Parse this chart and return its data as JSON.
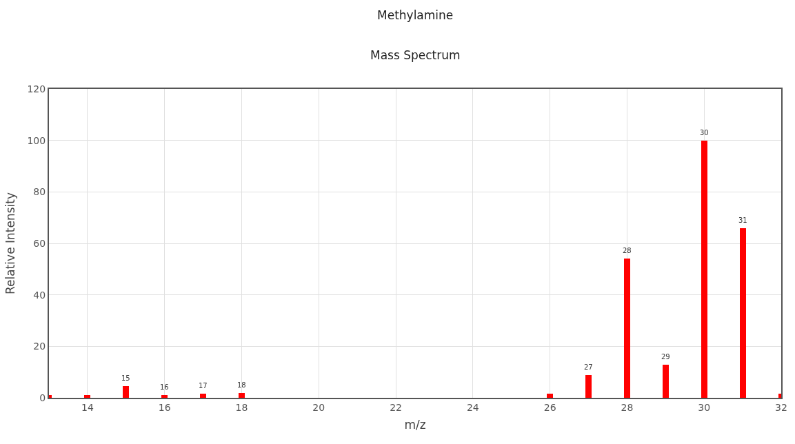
{
  "chart_data": {
    "type": "bar",
    "title": "Methylamine",
    "subtitle": "Mass Spectrum",
    "xlabel": "m/z",
    "ylabel": "Relative Intensity",
    "x": [
      13,
      14,
      15,
      16,
      17,
      18,
      26,
      27,
      28,
      29,
      30,
      31,
      32
    ],
    "values": [
      1,
      1,
      4.6,
      1,
      1.5,
      1.8,
      1.5,
      8.8,
      54.2,
      12.9,
      100,
      66,
      1.5
    ],
    "color": "#ff0000",
    "xlim": [
      13,
      32
    ],
    "xticks": [
      14,
      16,
      18,
      20,
      22,
      24,
      26,
      28,
      30,
      32
    ],
    "ylim": [
      0,
      120
    ],
    "yticks": [
      0,
      20,
      40,
      60,
      80,
      100,
      120
    ],
    "grid": true,
    "annotations": [
      {
        "text": "15",
        "x": 15,
        "y": 4.6
      },
      {
        "text": "16",
        "x": 16,
        "y": 1
      },
      {
        "text": "17",
        "x": 17,
        "y": 1.5
      },
      {
        "text": "18",
        "x": 18,
        "y": 1.8
      },
      {
        "text": "27",
        "x": 27,
        "y": 8.8
      },
      {
        "text": "28",
        "x": 28,
        "y": 54.2
      },
      {
        "text": "29",
        "x": 29,
        "y": 12.9
      },
      {
        "text": "30",
        "x": 30,
        "y": 100
      },
      {
        "text": "31",
        "x": 31,
        "y": 66
      }
    ]
  }
}
